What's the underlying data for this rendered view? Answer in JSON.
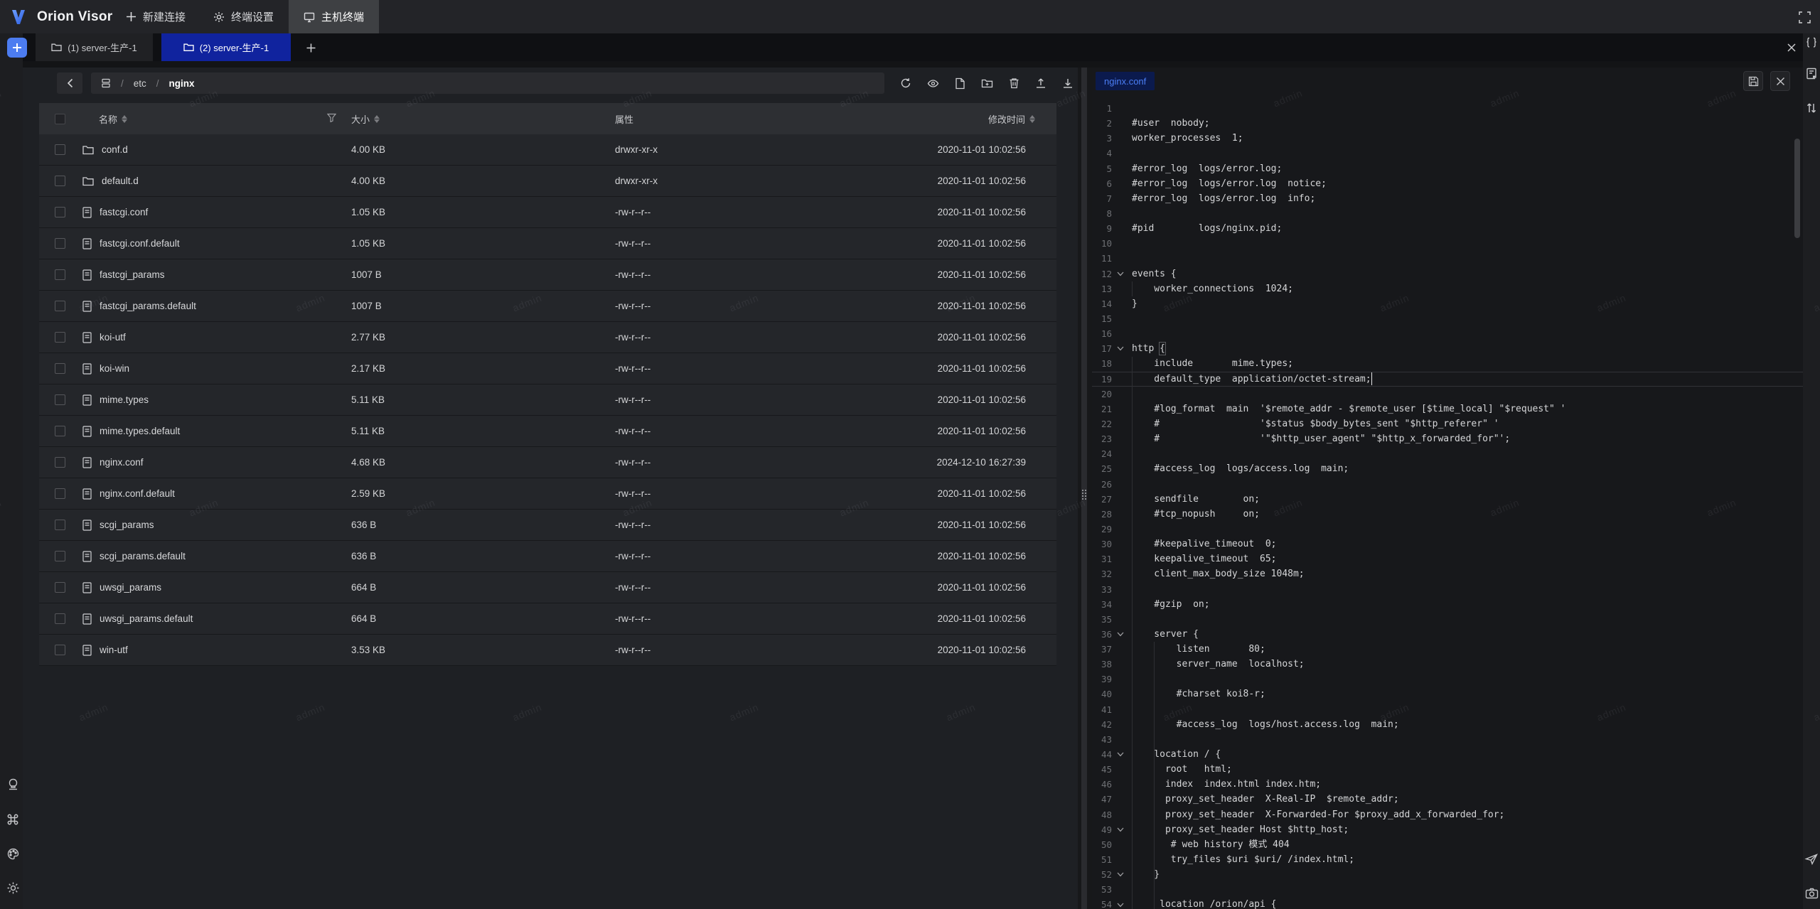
{
  "app": {
    "brand": "Orion Visor",
    "menu": [
      {
        "label": "新建连接",
        "icon": "plus-icon",
        "active": false
      },
      {
        "label": "终端设置",
        "icon": "gear-icon",
        "active": false
      },
      {
        "label": "主机终端",
        "icon": "monitor-icon",
        "active": true
      }
    ]
  },
  "watermark": {
    "text": "admin"
  },
  "tabs": [
    {
      "label": "(1) server-生产-1",
      "active": false
    },
    {
      "label": "(2) server-生产-1",
      "active": true
    }
  ],
  "file_panel": {
    "breadcrumb": {
      "segments": [
        "etc",
        "nginx"
      ]
    },
    "toolbar_icons": [
      "refresh-icon",
      "preview-eye-icon",
      "new-file-icon",
      "new-folder-icon",
      "delete-icon",
      "upload-icon",
      "download-icon"
    ],
    "table": {
      "headers": {
        "name": "名称",
        "size": "大小",
        "attr": "属性",
        "mtime": "修改时间"
      },
      "rows": [
        {
          "name": "conf.d",
          "type": "folder",
          "size": "4.00 KB",
          "attr": "drwxr-xr-x",
          "mtime": "2020-11-01 10:02:56"
        },
        {
          "name": "default.d",
          "type": "folder",
          "size": "4.00 KB",
          "attr": "drwxr-xr-x",
          "mtime": "2020-11-01 10:02:56"
        },
        {
          "name": "fastcgi.conf",
          "type": "file",
          "size": "1.05 KB",
          "attr": "-rw-r--r--",
          "mtime": "2020-11-01 10:02:56"
        },
        {
          "name": "fastcgi.conf.default",
          "type": "file",
          "size": "1.05 KB",
          "attr": "-rw-r--r--",
          "mtime": "2020-11-01 10:02:56"
        },
        {
          "name": "fastcgi_params",
          "type": "file",
          "size": "1007 B",
          "attr": "-rw-r--r--",
          "mtime": "2020-11-01 10:02:56"
        },
        {
          "name": "fastcgi_params.default",
          "type": "file",
          "size": "1007 B",
          "attr": "-rw-r--r--",
          "mtime": "2020-11-01 10:02:56"
        },
        {
          "name": "koi-utf",
          "type": "file",
          "size": "2.77 KB",
          "attr": "-rw-r--r--",
          "mtime": "2020-11-01 10:02:56"
        },
        {
          "name": "koi-win",
          "type": "file",
          "size": "2.17 KB",
          "attr": "-rw-r--r--",
          "mtime": "2020-11-01 10:02:56"
        },
        {
          "name": "mime.types",
          "type": "file",
          "size": "5.11 KB",
          "attr": "-rw-r--r--",
          "mtime": "2020-11-01 10:02:56"
        },
        {
          "name": "mime.types.default",
          "type": "file",
          "size": "5.11 KB",
          "attr": "-rw-r--r--",
          "mtime": "2020-11-01 10:02:56"
        },
        {
          "name": "nginx.conf",
          "type": "file",
          "size": "4.68 KB",
          "attr": "-rw-r--r--",
          "mtime": "2024-12-10 16:27:39"
        },
        {
          "name": "nginx.conf.default",
          "type": "file",
          "size": "2.59 KB",
          "attr": "-rw-r--r--",
          "mtime": "2020-11-01 10:02:56"
        },
        {
          "name": "scgi_params",
          "type": "file",
          "size": "636 B",
          "attr": "-rw-r--r--",
          "mtime": "2020-11-01 10:02:56"
        },
        {
          "name": "scgi_params.default",
          "type": "file",
          "size": "636 B",
          "attr": "-rw-r--r--",
          "mtime": "2020-11-01 10:02:56"
        },
        {
          "name": "uwsgi_params",
          "type": "file",
          "size": "664 B",
          "attr": "-rw-r--r--",
          "mtime": "2020-11-01 10:02:56"
        },
        {
          "name": "uwsgi_params.default",
          "type": "file",
          "size": "664 B",
          "attr": "-rw-r--r--",
          "mtime": "2020-11-01 10:02:56"
        },
        {
          "name": "win-utf",
          "type": "file",
          "size": "3.53 KB",
          "attr": "-rw-r--r--",
          "mtime": "2020-11-01 10:02:56"
        }
      ]
    }
  },
  "editor": {
    "file_tag": "nginx.conf",
    "active_line": 19,
    "fold_lines": [
      12,
      17,
      36,
      44,
      49,
      52,
      54
    ],
    "bracket_match": {
      "line": 17,
      "col": 5
    },
    "indent_guides": [
      {
        "from": 13,
        "to": 13,
        "level": 0
      },
      {
        "from": 18,
        "to": 54,
        "level": 0
      },
      {
        "from": 37,
        "to": 54,
        "level": 1
      }
    ],
    "lines": [
      "",
      "#user  nobody;",
      "worker_processes  1;",
      "",
      "#error_log  logs/error.log;",
      "#error_log  logs/error.log  notice;",
      "#error_log  logs/error.log  info;",
      "",
      "#pid        logs/nginx.pid;",
      "",
      "",
      "events {",
      "    worker_connections  1024;",
      "}",
      "",
      "",
      "http {",
      "    include       mime.types;",
      "    default_type  application/octet-stream;",
      "",
      "    #log_format  main  '$remote_addr - $remote_user [$time_local] \"$request\" '",
      "    #                  '$status $body_bytes_sent \"$http_referer\" '",
      "    #                  '\"$http_user_agent\" \"$http_x_forwarded_for\"';",
      "",
      "    #access_log  logs/access.log  main;",
      "",
      "    sendfile        on;",
      "    #tcp_nopush     on;",
      "",
      "    #keepalive_timeout  0;",
      "    keepalive_timeout  65;",
      "    client_max_body_size 1048m;",
      "",
      "    #gzip  on;",
      "",
      "    server {",
      "        listen       80;",
      "        server_name  localhost;",
      "",
      "        #charset koi8-r;",
      "",
      "        #access_log  logs/host.access.log  main;",
      "",
      "    location / {",
      "      root   html;",
      "      index  index.html index.htm;",
      "      proxy_set_header  X-Real-IP  $remote_addr;",
      "      proxy_set_header  X-Forwarded-For $proxy_add_x_forwarded_for;",
      "      proxy_set_header Host $http_host;",
      "       # web history 模式 404",
      "       try_files $uri $uri/ /index.html;",
      "    }",
      "",
      "     location /orion/api {"
    ]
  },
  "colors": {
    "accent_blue": "#4c7cf0",
    "active_tab_blue": "#10239e",
    "tag_bg": "#0b1a4d",
    "tag_text": "#4b7ef5"
  }
}
